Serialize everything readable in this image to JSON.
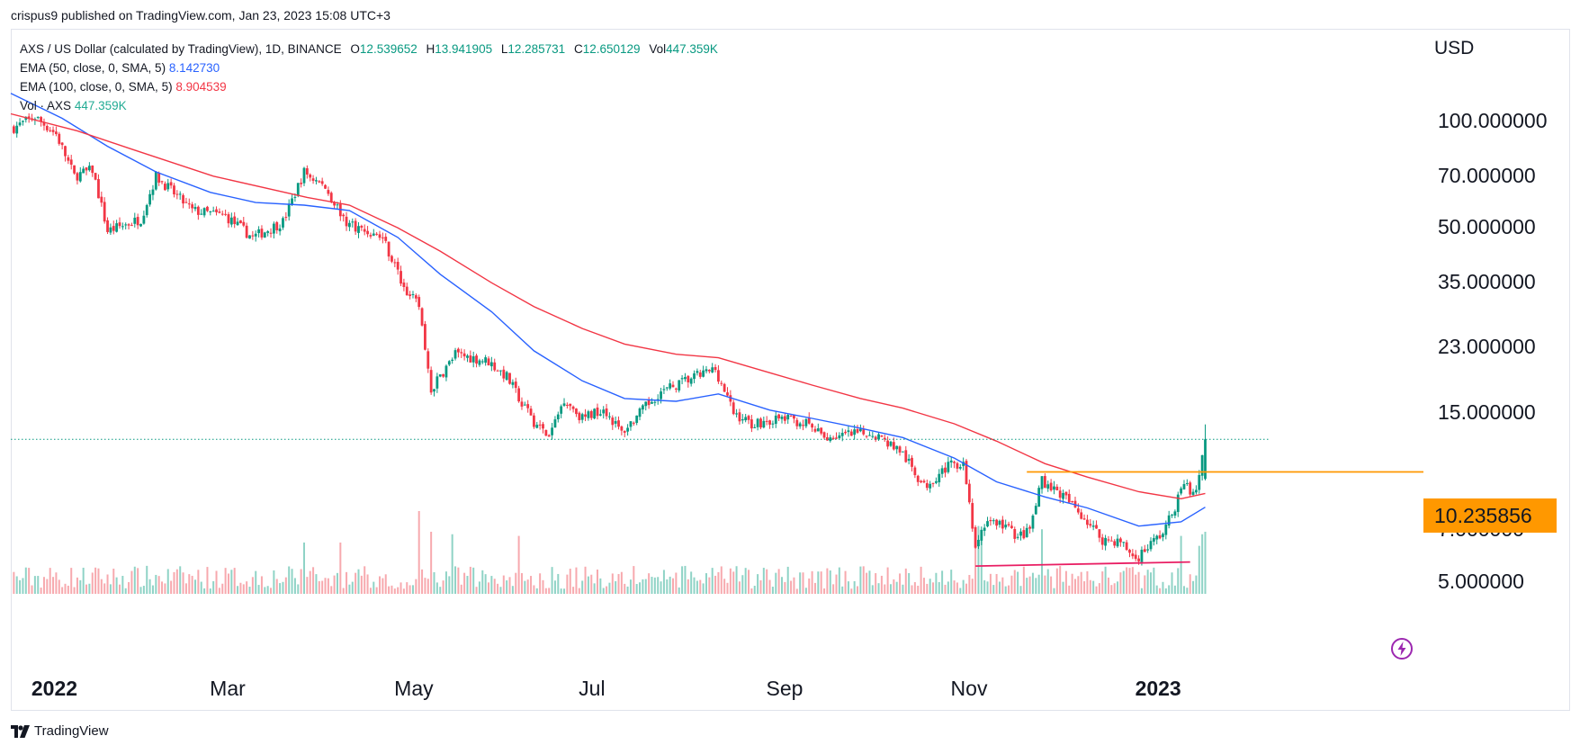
{
  "header": {
    "published": "crispus9 published on TradingView.com, Jan 23, 2023 15:08 UTC+3"
  },
  "legend": {
    "symbol": "AXS / US Dollar (calculated by TradingView), 1D, BINANCE",
    "o_label": "O",
    "o": "12.539652",
    "h_label": "H",
    "h": "13.941905",
    "l_label": "L",
    "l": "12.285731",
    "c_label": "C",
    "c": "12.650129",
    "vol_label": "Vol",
    "vol": "447.359K",
    "ema50_label": "EMA (50, close, 0, SMA, 5)",
    "ema50": "8.142730",
    "ema100_label": "EMA (100, close, 0, SMA, 5)",
    "ema100": "8.904539",
    "volume_label": "Vol · AXS",
    "volume": "447.359K"
  },
  "axis": {
    "currency": "USD"
  },
  "brand": "TradingView",
  "icons": {
    "logo": "tradingview-logo-icon",
    "alert": "flash-icon"
  },
  "colors": {
    "up": "#089981",
    "down": "#f23645",
    "ema50": "#2962ff",
    "ema100": "#f23645",
    "resistance": "#ff9800",
    "support": "#e91e63"
  },
  "chart_data": {
    "type": "candlestick",
    "scale": "log",
    "ylim": [
      4.5,
      130
    ],
    "y_ticks": [
      "100.000000",
      "70.000000",
      "50.000000",
      "35.000000",
      "23.000000",
      "15.000000",
      "7.000000",
      "5.000000"
    ],
    "y_tick_values": [
      100,
      70,
      50,
      35,
      23,
      15,
      7,
      5
    ],
    "x_ticks": [
      "2022",
      "Mar",
      "May",
      "Jul",
      "Sep",
      "Nov",
      "2023"
    ],
    "x_tick_dates": [
      "2022-01-01",
      "2022-03-01",
      "2022-05-01",
      "2022-07-01",
      "2022-09-01",
      "2022-11-01",
      "2023-01-01"
    ],
    "x_range": [
      "2021-12-24",
      "2023-02-10"
    ],
    "last_price": 12.650129,
    "price_label": "10.235856",
    "horizontal_lines": [
      {
        "name": "resistance",
        "value": 10.235856,
        "from": "2022-11-25",
        "to": "2023-01-23"
      },
      {
        "name": "support",
        "from": "2022-11-08",
        "to": "2023-01-18",
        "from_value": 5.55,
        "to_value": 5.7
      }
    ],
    "close_path": [
      [
        "2021-12-25",
        96
      ],
      [
        "2022-01-01",
        103
      ],
      [
        "2022-01-08",
        92
      ],
      [
        "2022-01-14",
        70
      ],
      [
        "2022-01-20",
        73
      ],
      [
        "2022-01-25",
        49
      ],
      [
        "2022-02-05",
        53
      ],
      [
        "2022-02-10",
        70
      ],
      [
        "2022-02-22",
        56
      ],
      [
        "2022-03-05",
        54
      ],
      [
        "2022-03-14",
        47
      ],
      [
        "2022-03-24",
        52
      ],
      [
        "2022-03-31",
        72
      ],
      [
        "2022-04-07",
        65
      ],
      [
        "2022-04-14",
        52
      ],
      [
        "2022-04-20",
        49
      ],
      [
        "2022-04-26",
        47
      ],
      [
        "2022-05-03",
        34
      ],
      [
        "2022-05-08",
        30
      ],
      [
        "2022-05-12",
        17.5
      ],
      [
        "2022-05-20",
        22
      ],
      [
        "2022-05-31",
        21
      ],
      [
        "2022-06-06",
        19
      ],
      [
        "2022-06-14",
        14.5
      ],
      [
        "2022-06-20",
        12.8
      ],
      [
        "2022-06-25",
        16.5
      ],
      [
        "2022-07-01",
        14.5
      ],
      [
        "2022-07-08",
        15.5
      ],
      [
        "2022-07-14",
        13.2
      ],
      [
        "2022-07-26",
        17
      ],
      [
        "2022-08-04",
        18.5
      ],
      [
        "2022-08-14",
        20
      ],
      [
        "2022-08-20",
        15
      ],
      [
        "2022-08-26",
        14
      ],
      [
        "2022-09-06",
        14.5
      ],
      [
        "2022-09-13",
        14
      ],
      [
        "2022-09-19",
        12.8
      ],
      [
        "2022-09-27",
        13
      ],
      [
        "2022-10-05",
        13.2
      ],
      [
        "2022-10-14",
        11.8
      ],
      [
        "2022-10-22",
        9.3
      ],
      [
        "2022-10-29",
        10.5
      ],
      [
        "2022-11-04",
        11
      ],
      [
        "2022-11-08",
        6.3
      ],
      [
        "2022-11-12",
        7.5
      ],
      [
        "2022-11-18",
        7.2
      ],
      [
        "2022-11-22",
        6.7
      ],
      [
        "2022-11-26",
        7
      ],
      [
        "2022-11-30",
        9.7
      ],
      [
        "2022-12-03",
        9.3
      ],
      [
        "2022-12-08",
        8.6
      ],
      [
        "2022-12-14",
        7.6
      ],
      [
        "2022-12-20",
        6.6
      ],
      [
        "2022-12-26",
        6.5
      ],
      [
        "2022-12-31",
        5.8
      ],
      [
        "2023-01-04",
        6.3
      ],
      [
        "2023-01-09",
        6.9
      ],
      [
        "2023-01-12",
        7.8
      ],
      [
        "2023-01-16",
        9.5
      ],
      [
        "2023-01-19",
        8.8
      ],
      [
        "2023-01-21",
        9.7
      ],
      [
        "2023-01-23",
        12.65
      ]
    ],
    "series": [
      {
        "name": "EMA (50, close, 0, SMA, 5)",
        "points": [
          [
            "2021-12-24",
            120
          ],
          [
            "2022-01-10",
            102
          ],
          [
            "2022-01-25",
            85
          ],
          [
            "2022-02-10",
            72
          ],
          [
            "2022-02-28",
            63
          ],
          [
            "2022-03-15",
            59
          ],
          [
            "2022-03-31",
            58
          ],
          [
            "2022-04-15",
            56
          ],
          [
            "2022-05-01",
            47
          ],
          [
            "2022-05-15",
            37
          ],
          [
            "2022-06-01",
            29
          ],
          [
            "2022-06-15",
            22.5
          ],
          [
            "2022-07-01",
            18.5
          ],
          [
            "2022-07-15",
            16.5
          ],
          [
            "2022-08-01",
            16.2
          ],
          [
            "2022-08-15",
            17
          ],
          [
            "2022-09-01",
            15.3
          ],
          [
            "2022-09-15",
            14.5
          ],
          [
            "2022-10-01",
            13.6
          ],
          [
            "2022-10-15",
            12.8
          ],
          [
            "2022-11-01",
            11.2
          ],
          [
            "2022-11-15",
            9.6
          ],
          [
            "2022-12-01",
            8.7
          ],
          [
            "2022-12-15",
            8.1
          ],
          [
            "2023-01-01",
            7.2
          ],
          [
            "2023-01-15",
            7.4
          ],
          [
            "2023-01-23",
            8.14
          ]
        ]
      },
      {
        "name": "EMA (100, close, 0, SMA, 5)",
        "points": [
          [
            "2021-12-24",
            105
          ],
          [
            "2022-01-15",
            94
          ],
          [
            "2022-02-01",
            84
          ],
          [
            "2022-03-01",
            70
          ],
          [
            "2022-04-01",
            61
          ],
          [
            "2022-04-15",
            58
          ],
          [
            "2022-05-01",
            50
          ],
          [
            "2022-05-15",
            43
          ],
          [
            "2022-06-01",
            35
          ],
          [
            "2022-06-15",
            30
          ],
          [
            "2022-07-01",
            26
          ],
          [
            "2022-07-15",
            23.5
          ],
          [
            "2022-08-01",
            22
          ],
          [
            "2022-08-15",
            21.5
          ],
          [
            "2022-09-01",
            19.5
          ],
          [
            "2022-09-15",
            18
          ],
          [
            "2022-10-01",
            16.5
          ],
          [
            "2022-10-15",
            15.5
          ],
          [
            "2022-11-01",
            14
          ],
          [
            "2022-11-15",
            12.5
          ],
          [
            "2022-12-01",
            10.8
          ],
          [
            "2022-12-15",
            9.9
          ],
          [
            "2023-01-01",
            9
          ],
          [
            "2023-01-15",
            8.6
          ],
          [
            "2023-01-23",
            8.9
          ]
        ]
      }
    ],
    "volume_spikes": [
      [
        "2022-05-08",
        1.0
      ],
      [
        "2022-05-12",
        0.75
      ],
      [
        "2022-05-19",
        0.72
      ],
      [
        "2022-06-10",
        0.7
      ],
      [
        "2022-03-31",
        0.62
      ],
      [
        "2022-04-12",
        0.62
      ],
      [
        "2022-11-08",
        0.75
      ],
      [
        "2022-11-09",
        0.82
      ],
      [
        "2022-11-10",
        0.72
      ],
      [
        "2022-11-30",
        0.78
      ],
      [
        "2023-01-15",
        0.7
      ],
      [
        "2023-01-21",
        0.58
      ],
      [
        "2023-01-22",
        0.72
      ],
      [
        "2023-01-23",
        0.75
      ]
    ]
  }
}
